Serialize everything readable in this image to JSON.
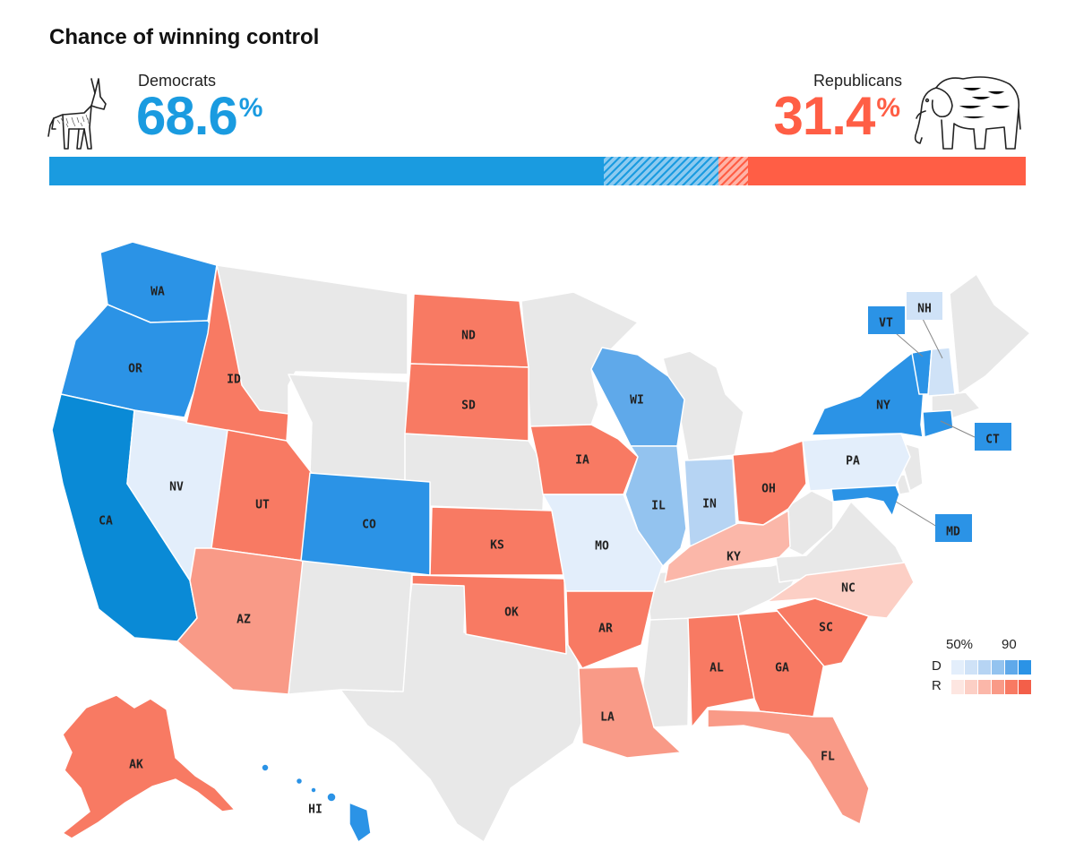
{
  "title": "Chance of winning control",
  "democrats": {
    "label": "Democrats",
    "percent": "68.6",
    "percent_sign": "%",
    "icon": "donkey-icon",
    "color": "#1a9be0"
  },
  "republicans": {
    "label": "Republicans",
    "percent": "31.4",
    "percent_sign": "%",
    "icon": "elephant-icon",
    "color": "#ff5e45"
  },
  "probability_bar": {
    "dem_solid_share": 0.568,
    "dem_lean_share": 0.118,
    "rep_lean_share": 0.03,
    "rep_solid_share": 0.284
  },
  "legend": {
    "low_label": "50%",
    "high_label": "90",
    "dem_row_label": "D",
    "rep_row_label": "R",
    "dem_scale": [
      "#e3eefb",
      "#cfe2f7",
      "#b6d4f3",
      "#93c3ef",
      "#5fa9ea",
      "#2b93e6"
    ],
    "rep_scale": [
      "#fde6e1",
      "#fccfc5",
      "#fbb7a9",
      "#f99a87",
      "#f87a63",
      "#f35f49"
    ]
  },
  "states": [
    {
      "code": "WA",
      "party": "D"
    },
    {
      "code": "OR",
      "party": "D"
    },
    {
      "code": "CA",
      "party": "D"
    },
    {
      "code": "NV",
      "party": "D"
    },
    {
      "code": "ID",
      "party": "R"
    },
    {
      "code": "UT",
      "party": "R"
    },
    {
      "code": "AZ",
      "party": "R"
    },
    {
      "code": "CO",
      "party": "D"
    },
    {
      "code": "ND",
      "party": "R"
    },
    {
      "code": "SD",
      "party": "R"
    },
    {
      "code": "KS",
      "party": "R"
    },
    {
      "code": "OK",
      "party": "R"
    },
    {
      "code": "IA",
      "party": "R"
    },
    {
      "code": "MO",
      "party": "D"
    },
    {
      "code": "AR",
      "party": "R"
    },
    {
      "code": "LA",
      "party": "R"
    },
    {
      "code": "WI",
      "party": "D"
    },
    {
      "code": "IL",
      "party": "D"
    },
    {
      "code": "IN",
      "party": "D"
    },
    {
      "code": "OH",
      "party": "R"
    },
    {
      "code": "KY",
      "party": "R"
    },
    {
      "code": "AL",
      "party": "R"
    },
    {
      "code": "GA",
      "party": "R"
    },
    {
      "code": "SC",
      "party": "R"
    },
    {
      "code": "NC",
      "party": "R"
    },
    {
      "code": "FL",
      "party": "R"
    },
    {
      "code": "PA",
      "party": "D"
    },
    {
      "code": "NY",
      "party": "D"
    },
    {
      "code": "VT",
      "party": "D"
    },
    {
      "code": "NH",
      "party": "D"
    },
    {
      "code": "CT",
      "party": "D"
    },
    {
      "code": "MD",
      "party": "D"
    },
    {
      "code": "AK",
      "party": "R"
    },
    {
      "code": "HI",
      "party": "D"
    }
  ]
}
